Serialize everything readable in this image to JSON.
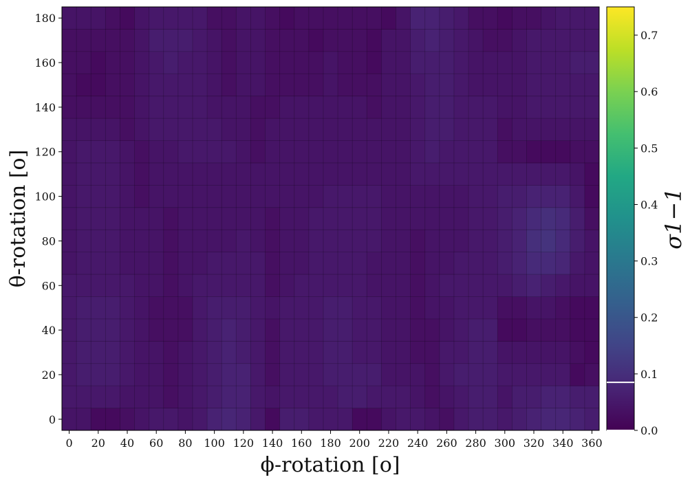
{
  "chart_data": {
    "type": "heatmap",
    "title": "",
    "xlabel": "ϕ-rotation [o]",
    "ylabel": "θ-rotation [o]",
    "colorbar_label": "σ1−1",
    "colormap": "viridis",
    "grid": true,
    "x_ticks": [
      0,
      20,
      40,
      60,
      80,
      100,
      120,
      140,
      160,
      180,
      200,
      220,
      240,
      260,
      280,
      300,
      320,
      340,
      360
    ],
    "y_ticks": [
      0,
      20,
      40,
      60,
      80,
      100,
      120,
      140,
      160,
      180
    ],
    "colorbar_ticks": [
      0.0,
      0.1,
      0.2,
      0.3,
      0.4,
      0.5,
      0.6,
      0.7
    ],
    "colorbar_tick_labels": [
      "0.0",
      "0.1",
      "0.2",
      "0.3",
      "0.4",
      "0.5",
      "0.6",
      "0.7"
    ],
    "xlim": [
      -5,
      365
    ],
    "ylim": [
      -5,
      185
    ],
    "vmin": 0.0,
    "vmax": 0.75,
    "colorbar_markers": [
      0.0,
      0.085
    ],
    "x": [
      0,
      10,
      20,
      30,
      40,
      50,
      60,
      70,
      80,
      90,
      100,
      110,
      120,
      130,
      140,
      150,
      160,
      170,
      180,
      190,
      200,
      210,
      220,
      230,
      240,
      250,
      260,
      270,
      280,
      290,
      300,
      310,
      320,
      330,
      340,
      350,
      360
    ],
    "y": [
      0,
      10,
      20,
      30,
      40,
      50,
      60,
      70,
      80,
      90,
      100,
      110,
      120,
      130,
      140,
      150,
      160,
      170,
      180
    ],
    "z": [
      [
        0.04,
        0.04,
        0.02,
        0.02,
        0.03,
        0.04,
        0.05,
        0.05,
        0.04,
        0.05,
        0.07,
        0.08,
        0.07,
        0.05,
        0.02,
        0.06,
        0.06,
        0.05,
        0.05,
        0.05,
        0.02,
        0.02,
        0.04,
        0.05,
        0.05,
        0.04,
        0.03,
        0.05,
        0.06,
        0.06,
        0.05,
        0.06,
        0.07,
        0.08,
        0.08,
        0.07,
        0.06
      ],
      [
        0.05,
        0.05,
        0.05,
        0.05,
        0.04,
        0.04,
        0.04,
        0.03,
        0.04,
        0.05,
        0.06,
        0.07,
        0.07,
        0.05,
        0.04,
        0.05,
        0.05,
        0.05,
        0.05,
        0.06,
        0.06,
        0.05,
        0.05,
        0.05,
        0.04,
        0.03,
        0.04,
        0.05,
        0.06,
        0.06,
        0.04,
        0.06,
        0.06,
        0.07,
        0.07,
        0.06,
        0.06
      ],
      [
        0.05,
        0.06,
        0.06,
        0.06,
        0.05,
        0.04,
        0.04,
        0.03,
        0.04,
        0.05,
        0.06,
        0.07,
        0.07,
        0.05,
        0.03,
        0.05,
        0.05,
        0.05,
        0.06,
        0.06,
        0.06,
        0.06,
        0.04,
        0.04,
        0.04,
        0.03,
        0.05,
        0.06,
        0.06,
        0.06,
        0.05,
        0.05,
        0.05,
        0.05,
        0.05,
        0.02,
        0.03
      ],
      [
        0.05,
        0.06,
        0.06,
        0.06,
        0.05,
        0.04,
        0.04,
        0.03,
        0.04,
        0.05,
        0.06,
        0.07,
        0.06,
        0.05,
        0.03,
        0.05,
        0.05,
        0.05,
        0.06,
        0.06,
        0.05,
        0.05,
        0.04,
        0.04,
        0.03,
        0.03,
        0.05,
        0.05,
        0.06,
        0.06,
        0.04,
        0.04,
        0.04,
        0.04,
        0.04,
        0.03,
        0.02
      ],
      [
        0.05,
        0.06,
        0.06,
        0.06,
        0.05,
        0.04,
        0.03,
        0.03,
        0.03,
        0.05,
        0.06,
        0.07,
        0.06,
        0.05,
        0.03,
        0.05,
        0.05,
        0.05,
        0.06,
        0.06,
        0.05,
        0.05,
        0.04,
        0.04,
        0.03,
        0.03,
        0.04,
        0.05,
        0.06,
        0.06,
        0.02,
        0.02,
        0.03,
        0.03,
        0.03,
        0.02,
        0.02
      ],
      [
        0.05,
        0.06,
        0.06,
        0.06,
        0.05,
        0.04,
        0.03,
        0.03,
        0.03,
        0.05,
        0.06,
        0.06,
        0.06,
        0.05,
        0.04,
        0.05,
        0.05,
        0.05,
        0.06,
        0.06,
        0.05,
        0.05,
        0.04,
        0.04,
        0.03,
        0.04,
        0.04,
        0.05,
        0.05,
        0.05,
        0.03,
        0.03,
        0.04,
        0.04,
        0.03,
        0.02,
        0.02
      ],
      [
        0.05,
        0.05,
        0.05,
        0.05,
        0.05,
        0.04,
        0.04,
        0.03,
        0.04,
        0.05,
        0.05,
        0.05,
        0.05,
        0.05,
        0.03,
        0.04,
        0.05,
        0.05,
        0.05,
        0.05,
        0.05,
        0.04,
        0.04,
        0.04,
        0.03,
        0.04,
        0.05,
        0.05,
        0.05,
        0.05,
        0.05,
        0.06,
        0.07,
        0.06,
        0.05,
        0.04,
        0.04
      ],
      [
        0.04,
        0.05,
        0.05,
        0.05,
        0.04,
        0.04,
        0.04,
        0.03,
        0.04,
        0.04,
        0.05,
        0.05,
        0.05,
        0.05,
        0.03,
        0.04,
        0.04,
        0.05,
        0.05,
        0.05,
        0.05,
        0.04,
        0.04,
        0.04,
        0.03,
        0.04,
        0.04,
        0.05,
        0.05,
        0.05,
        0.06,
        0.07,
        0.09,
        0.09,
        0.08,
        0.05,
        0.04
      ],
      [
        0.04,
        0.05,
        0.05,
        0.05,
        0.04,
        0.04,
        0.04,
        0.03,
        0.04,
        0.04,
        0.04,
        0.04,
        0.05,
        0.04,
        0.03,
        0.04,
        0.04,
        0.05,
        0.05,
        0.05,
        0.05,
        0.05,
        0.04,
        0.04,
        0.03,
        0.04,
        0.04,
        0.04,
        0.05,
        0.05,
        0.06,
        0.07,
        0.1,
        0.11,
        0.09,
        0.06,
        0.04
      ],
      [
        0.04,
        0.05,
        0.05,
        0.05,
        0.04,
        0.04,
        0.04,
        0.03,
        0.04,
        0.04,
        0.04,
        0.04,
        0.04,
        0.04,
        0.03,
        0.04,
        0.04,
        0.05,
        0.05,
        0.05,
        0.05,
        0.05,
        0.04,
        0.04,
        0.04,
        0.04,
        0.04,
        0.04,
        0.05,
        0.05,
        0.06,
        0.07,
        0.09,
        0.1,
        0.09,
        0.06,
        0.03
      ],
      [
        0.04,
        0.05,
        0.05,
        0.05,
        0.04,
        0.03,
        0.04,
        0.04,
        0.04,
        0.04,
        0.04,
        0.04,
        0.04,
        0.04,
        0.04,
        0.04,
        0.04,
        0.04,
        0.05,
        0.05,
        0.05,
        0.05,
        0.04,
        0.04,
        0.04,
        0.04,
        0.04,
        0.04,
        0.05,
        0.05,
        0.06,
        0.06,
        0.07,
        0.07,
        0.07,
        0.05,
        0.02
      ],
      [
        0.04,
        0.05,
        0.05,
        0.05,
        0.04,
        0.03,
        0.04,
        0.04,
        0.04,
        0.04,
        0.04,
        0.04,
        0.04,
        0.04,
        0.04,
        0.04,
        0.04,
        0.04,
        0.04,
        0.04,
        0.04,
        0.04,
        0.04,
        0.04,
        0.05,
        0.05,
        0.05,
        0.05,
        0.05,
        0.05,
        0.05,
        0.05,
        0.05,
        0.05,
        0.05,
        0.04,
        0.02
      ],
      [
        0.04,
        0.05,
        0.05,
        0.05,
        0.04,
        0.03,
        0.04,
        0.04,
        0.05,
        0.05,
        0.05,
        0.05,
        0.04,
        0.03,
        0.04,
        0.04,
        0.04,
        0.04,
        0.04,
        0.04,
        0.04,
        0.04,
        0.04,
        0.04,
        0.05,
        0.06,
        0.05,
        0.05,
        0.05,
        0.05,
        0.03,
        0.03,
        0.02,
        0.02,
        0.02,
        0.03,
        0.03
      ],
      [
        0.04,
        0.04,
        0.04,
        0.04,
        0.03,
        0.04,
        0.05,
        0.05,
        0.05,
        0.05,
        0.05,
        0.04,
        0.04,
        0.03,
        0.04,
        0.04,
        0.04,
        0.04,
        0.04,
        0.04,
        0.04,
        0.04,
        0.04,
        0.04,
        0.05,
        0.06,
        0.06,
        0.05,
        0.05,
        0.05,
        0.03,
        0.04,
        0.04,
        0.04,
        0.04,
        0.04,
        0.04
      ],
      [
        0.03,
        0.03,
        0.03,
        0.03,
        0.03,
        0.04,
        0.05,
        0.05,
        0.05,
        0.05,
        0.04,
        0.04,
        0.04,
        0.03,
        0.03,
        0.04,
        0.04,
        0.04,
        0.04,
        0.04,
        0.04,
        0.03,
        0.04,
        0.04,
        0.05,
        0.06,
        0.06,
        0.05,
        0.05,
        0.05,
        0.04,
        0.04,
        0.05,
        0.05,
        0.05,
        0.05,
        0.05
      ],
      [
        0.03,
        0.02,
        0.02,
        0.03,
        0.03,
        0.04,
        0.05,
        0.05,
        0.05,
        0.05,
        0.04,
        0.03,
        0.04,
        0.04,
        0.03,
        0.03,
        0.03,
        0.03,
        0.04,
        0.03,
        0.03,
        0.03,
        0.04,
        0.04,
        0.05,
        0.06,
        0.06,
        0.05,
        0.04,
        0.04,
        0.04,
        0.04,
        0.05,
        0.05,
        0.05,
        0.05,
        0.05
      ],
      [
        0.03,
        0.03,
        0.02,
        0.03,
        0.03,
        0.04,
        0.05,
        0.06,
        0.05,
        0.05,
        0.04,
        0.03,
        0.04,
        0.04,
        0.03,
        0.03,
        0.03,
        0.03,
        0.04,
        0.03,
        0.03,
        0.02,
        0.04,
        0.04,
        0.06,
        0.06,
        0.06,
        0.05,
        0.04,
        0.04,
        0.04,
        0.04,
        0.05,
        0.05,
        0.05,
        0.06,
        0.06
      ],
      [
        0.03,
        0.03,
        0.03,
        0.03,
        0.03,
        0.04,
        0.06,
        0.06,
        0.06,
        0.05,
        0.04,
        0.03,
        0.04,
        0.04,
        0.03,
        0.03,
        0.03,
        0.02,
        0.03,
        0.03,
        0.03,
        0.02,
        0.04,
        0.04,
        0.06,
        0.07,
        0.06,
        0.05,
        0.04,
        0.03,
        0.03,
        0.04,
        0.05,
        0.05,
        0.05,
        0.05,
        0.05
      ],
      [
        0.04,
        0.04,
        0.04,
        0.03,
        0.02,
        0.04,
        0.05,
        0.05,
        0.05,
        0.05,
        0.03,
        0.03,
        0.04,
        0.04,
        0.03,
        0.02,
        0.03,
        0.03,
        0.03,
        0.03,
        0.03,
        0.03,
        0.02,
        0.04,
        0.07,
        0.07,
        0.06,
        0.05,
        0.03,
        0.03,
        0.02,
        0.03,
        0.03,
        0.04,
        0.05,
        0.05,
        0.05
      ]
    ]
  }
}
